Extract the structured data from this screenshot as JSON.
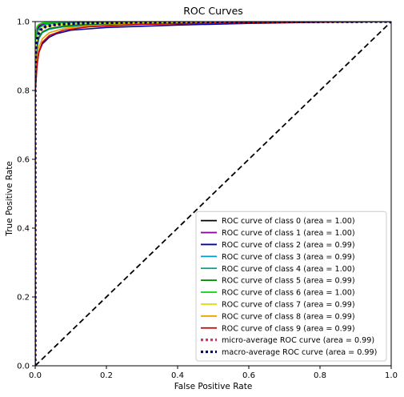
{
  "chart_data": {
    "type": "line",
    "title": "ROC Curves",
    "xlabel": "False Positive Rate",
    "ylabel": "True Positive Rate",
    "xlim": [
      0.0,
      1.0
    ],
    "ylim": [
      0.0,
      1.0
    ],
    "x_ticks": [
      "0.0",
      "0.2",
      "0.4",
      "0.6",
      "0.8",
      "1.0"
    ],
    "y_ticks": [
      "0.0",
      "0.2",
      "0.4",
      "0.6",
      "0.8",
      "1.0"
    ],
    "grid": false,
    "legend_position": "bottom-right",
    "series": [
      {
        "name": "ROC curve of class 0 (area = 1.00)",
        "color": "#000000",
        "style": "solid",
        "x": [
          0,
          0,
          0.002,
          0.005,
          0.01,
          0.02,
          0.05,
          0.1,
          0.3,
          1.0
        ],
        "y": [
          0,
          0.88,
          0.95,
          0.975,
          0.985,
          0.992,
          0.996,
          0.998,
          1.0,
          1.0
        ]
      },
      {
        "name": "ROC curve of class 1 (area = 1.00)",
        "color": "#8b0a9e",
        "style": "solid",
        "x": [
          0,
          0,
          0.002,
          0.005,
          0.01,
          0.02,
          0.05,
          0.1,
          0.3,
          1.0
        ],
        "y": [
          0,
          0.92,
          0.96,
          0.98,
          0.988,
          0.993,
          0.996,
          0.998,
          1.0,
          1.0
        ]
      },
      {
        "name": "ROC curve of class 2 (area = 0.99)",
        "color": "#0000aa",
        "style": "solid",
        "x": [
          0,
          0,
          0.005,
          0.01,
          0.02,
          0.04,
          0.06,
          0.1,
          0.2,
          0.4,
          0.6,
          0.8,
          1.0
        ],
        "y": [
          0,
          0.8,
          0.88,
          0.91,
          0.935,
          0.955,
          0.965,
          0.975,
          0.983,
          0.99,
          0.995,
          0.998,
          1.0
        ]
      },
      {
        "name": "ROC curve of class 3 (area = 0.99)",
        "color": "#0099cc",
        "style": "solid",
        "x": [
          0,
          0,
          0.005,
          0.01,
          0.02,
          0.04,
          0.08,
          0.15,
          0.3,
          0.6,
          1.0
        ],
        "y": [
          0,
          0.84,
          0.92,
          0.95,
          0.968,
          0.978,
          0.985,
          0.99,
          0.995,
          0.998,
          1.0
        ]
      },
      {
        "name": "ROC curve of class 4 (area = 1.00)",
        "color": "#009e8a",
        "style": "solid",
        "x": [
          0,
          0,
          0.003,
          0.008,
          0.015,
          0.03,
          0.06,
          0.12,
          0.3,
          1.0
        ],
        "y": [
          0,
          0.9,
          0.955,
          0.975,
          0.985,
          0.992,
          0.996,
          0.998,
          1.0,
          1.0
        ]
      },
      {
        "name": "ROC curve of class 5 (area = 0.99)",
        "color": "#008800",
        "style": "solid",
        "x": [
          0,
          0,
          0.005,
          0.01,
          0.02,
          0.04,
          0.08,
          0.15,
          0.3,
          0.6,
          1.0
        ],
        "y": [
          0,
          0.86,
          0.93,
          0.955,
          0.97,
          0.98,
          0.987,
          0.992,
          0.996,
          0.998,
          1.0
        ]
      },
      {
        "name": "ROC curve of class 6 (area = 1.00)",
        "color": "#11dd11",
        "style": "solid",
        "x": [
          0,
          0,
          0.002,
          0.005,
          0.01,
          0.02,
          0.05,
          0.1,
          0.25,
          1.0
        ],
        "y": [
          0,
          0.93,
          0.97,
          0.985,
          0.992,
          0.996,
          0.998,
          0.999,
          1.0,
          1.0
        ]
      },
      {
        "name": "ROC curve of class 7 (area = 0.99)",
        "color": "#e0e000",
        "style": "solid",
        "x": [
          0,
          0,
          0.003,
          0.008,
          0.015,
          0.03,
          0.06,
          0.12,
          0.3,
          0.6,
          1.0
        ],
        "y": [
          0,
          0.88,
          0.94,
          0.965,
          0.978,
          0.986,
          0.991,
          0.994,
          0.997,
          0.999,
          1.0
        ]
      },
      {
        "name": "ROC curve of class 8 (area = 0.99)",
        "color": "#e6a000",
        "style": "solid",
        "x": [
          0,
          0,
          0.005,
          0.01,
          0.02,
          0.04,
          0.08,
          0.15,
          0.3,
          0.6,
          1.0
        ],
        "y": [
          0,
          0.82,
          0.89,
          0.925,
          0.95,
          0.968,
          0.98,
          0.988,
          0.993,
          0.997,
          1.0
        ]
      },
      {
        "name": "ROC curve of class 9 (area = 0.99)",
        "color": "#cc0000",
        "style": "solid",
        "x": [
          0,
          0,
          0.005,
          0.01,
          0.02,
          0.04,
          0.08,
          0.15,
          0.3,
          0.6,
          1.0
        ],
        "y": [
          0,
          0.79,
          0.87,
          0.91,
          0.94,
          0.96,
          0.975,
          0.985,
          0.992,
          0.997,
          1.0
        ]
      },
      {
        "name": "micro-average ROC curve (area = 0.99)",
        "color": "#ff1e6e",
        "style": "dotted",
        "x": [
          0,
          0,
          0.003,
          0.008,
          0.015,
          0.03,
          0.06,
          0.12,
          0.3,
          0.6,
          1.0
        ],
        "y": [
          0,
          0.86,
          0.93,
          0.96,
          0.975,
          0.985,
          0.991,
          0.995,
          0.998,
          0.999,
          1.0
        ]
      },
      {
        "name": "macro-average ROC curve (area = 0.99)",
        "color": "#000066",
        "style": "dotted",
        "x": [
          0,
          0,
          0.003,
          0.008,
          0.015,
          0.03,
          0.06,
          0.12,
          0.3,
          0.6,
          1.0
        ],
        "y": [
          0,
          0.87,
          0.935,
          0.962,
          0.976,
          0.986,
          0.992,
          0.995,
          0.998,
          0.999,
          1.0
        ]
      }
    ],
    "reference_line": {
      "x": [
        0,
        1
      ],
      "y": [
        0,
        1
      ],
      "color": "#000000",
      "style": "dashed"
    }
  }
}
